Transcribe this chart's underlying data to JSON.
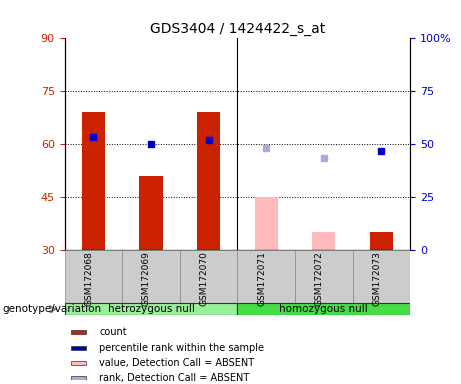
{
  "title": "GDS3404 / 1424422_s_at",
  "samples": [
    "GSM172068",
    "GSM172069",
    "GSM172070",
    "GSM172071",
    "GSM172072",
    "GSM172073"
  ],
  "bar_values": [
    69,
    51,
    69,
    45,
    35,
    35
  ],
  "bar_colors": [
    "#cc2200",
    "#cc2200",
    "#cc2200",
    "#ffbbbb",
    "#ffbbbb",
    "#cc2200"
  ],
  "dot_values_left": [
    62,
    60,
    61,
    59,
    56,
    58
  ],
  "dot_colors": [
    "#0000cc",
    "#0000cc",
    "#0000cc",
    "#aaaadd",
    "#aaaadd",
    "#0000cc"
  ],
  "ylim_left": [
    30,
    90
  ],
  "ylim_right": [
    0,
    100
  ],
  "yticks_left": [
    30,
    45,
    60,
    75,
    90
  ],
  "yticks_right": [
    0,
    25,
    50,
    75,
    100
  ],
  "hlines": [
    45,
    60,
    75
  ],
  "group1_label": "hetrozygous null",
  "group2_label": "homozygous null",
  "genotype_label": "genotype/variation",
  "legend_items": [
    {
      "label": "count",
      "color": "#cc2200"
    },
    {
      "label": "percentile rank within the sample",
      "color": "#0000cc"
    },
    {
      "label": "value, Detection Call = ABSENT",
      "color": "#ffbbbb"
    },
    {
      "label": "rank, Detection Call = ABSENT",
      "color": "#aaaadd"
    }
  ],
  "bar_width": 0.4,
  "group1_color": "#99ee99",
  "group2_color": "#44dd44",
  "sample_bg_color": "#cccccc"
}
